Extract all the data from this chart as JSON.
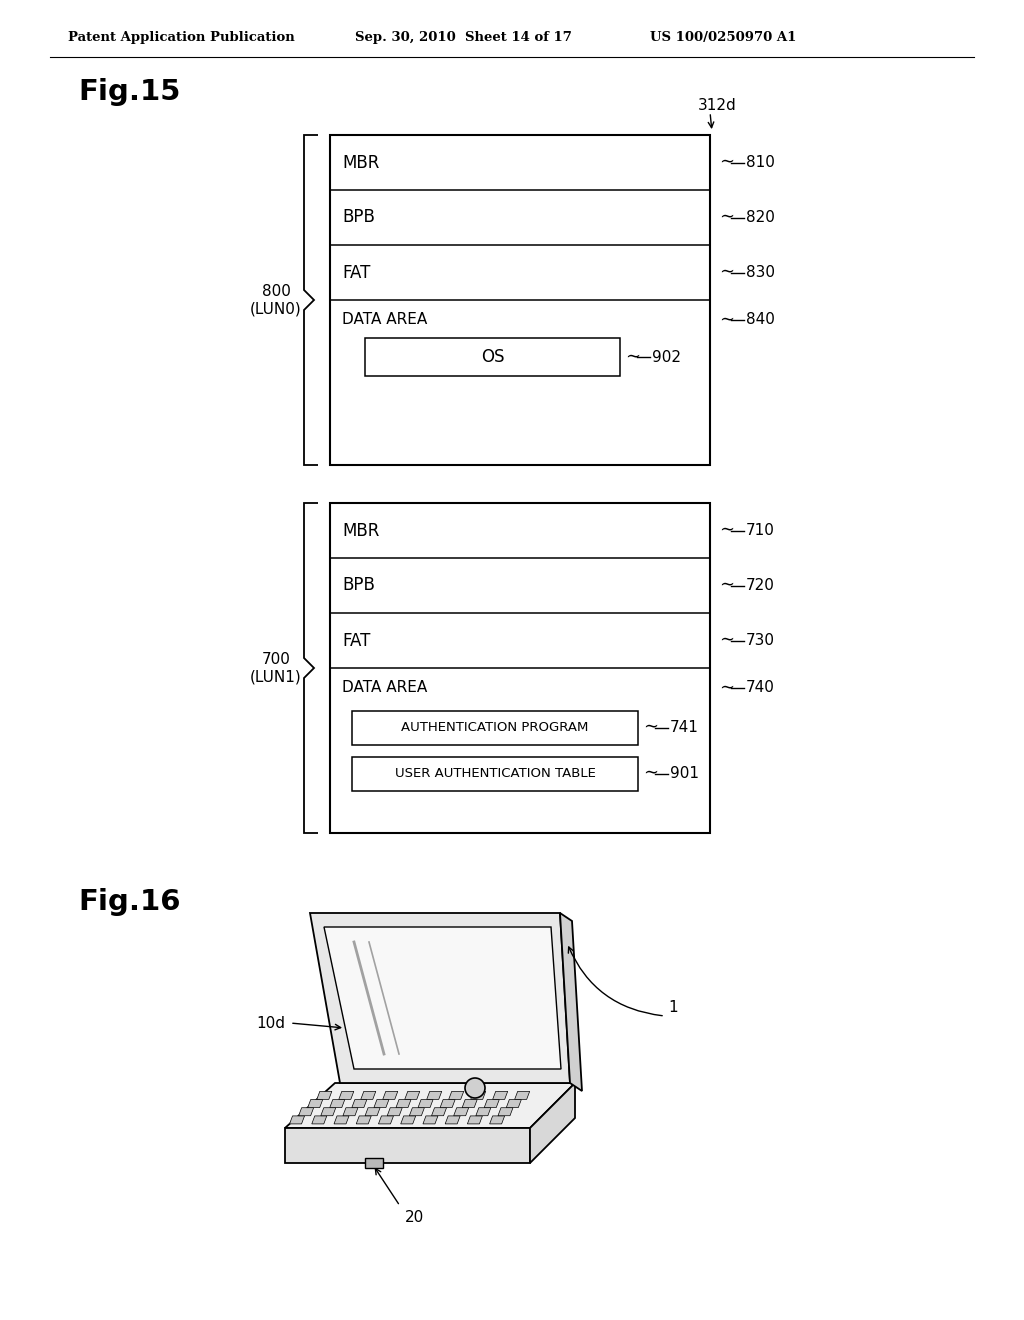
{
  "header_left": "Patent Application Publication",
  "header_mid": "Sep. 30, 2010  Sheet 14 of 17",
  "header_right": "US 100/0250970 A1",
  "fig15_label": "Fig.15",
  "fig16_label": "Fig.16",
  "bg_color": "#ffffff",
  "text_color": "#000000",
  "label_312d": "312d",
  "lun0_num": "800",
  "lun0_name": "(LUN0)",
  "lun1_num": "700",
  "lun1_name": "(LUN1)",
  "rows_lun0": [
    {
      "label": "MBR",
      "ref": "810",
      "units": 1
    },
    {
      "label": "BPB",
      "ref": "820",
      "units": 1
    },
    {
      "label": "FAT",
      "ref": "830",
      "units": 1
    },
    {
      "label": "DATA AREA",
      "ref": "840",
      "units": 3,
      "sublabel": "OS",
      "subref": "902"
    }
  ],
  "rows_lun1": [
    {
      "label": "MBR",
      "ref": "710",
      "units": 1
    },
    {
      "label": "BPB",
      "ref": "720",
      "units": 1
    },
    {
      "label": "FAT",
      "ref": "730",
      "units": 1
    },
    {
      "label": "DATA AREA",
      "ref": "740",
      "units": 3,
      "sublabels": [
        {
          "label": "AUTHENTICATION PROGRAM",
          "ref": "741"
        },
        {
          "label": "USER AUTHENTICATION TABLE",
          "ref": "901"
        }
      ]
    }
  ]
}
